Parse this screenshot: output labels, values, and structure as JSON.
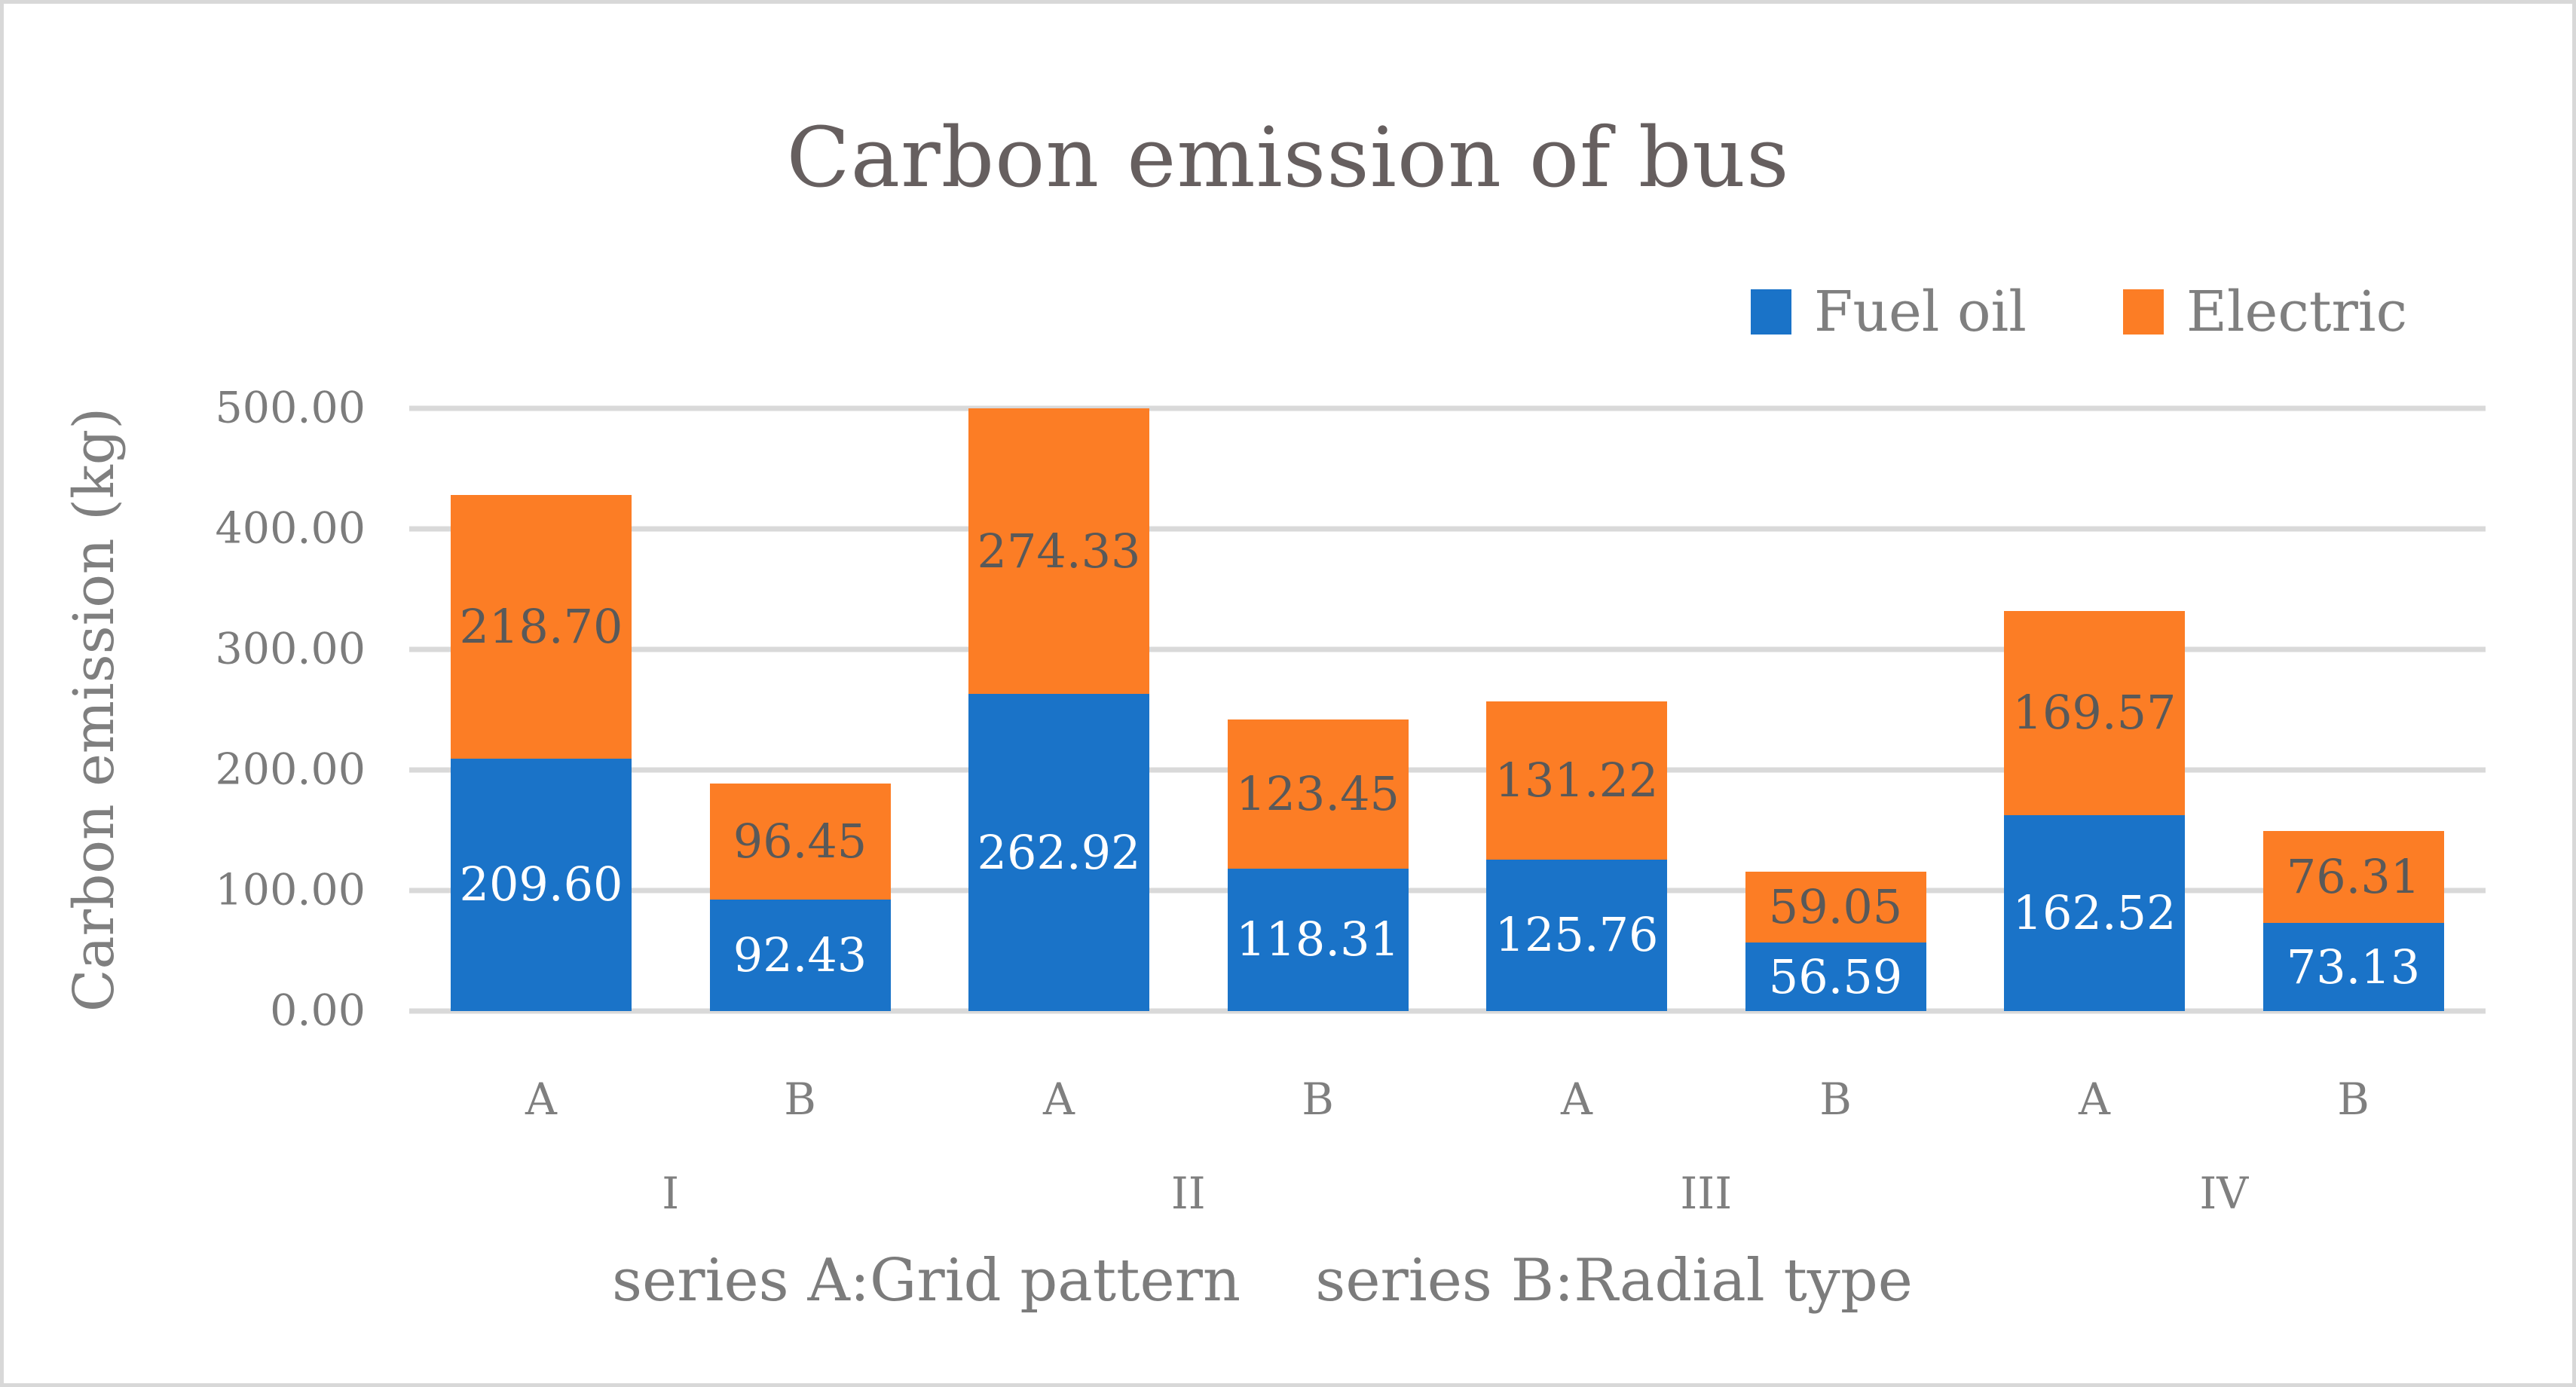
{
  "figure": {
    "background": "#ffffff",
    "border_color": "#d8d8d8"
  },
  "chart_data": {
    "type": "bar",
    "stacked": true,
    "title": "Carbon emission of bus",
    "ylabel": "Carbon emission (kg)",
    "xlabel": "series A:Grid pattern    series B:Radial type",
    "ylim": [
      0,
      500
    ],
    "ytick_values": [
      0,
      100,
      200,
      300,
      400,
      500
    ],
    "ytick_labels": [
      "0.00",
      "100.00",
      "200.00",
      "300.00",
      "400.00",
      "500.00"
    ],
    "grid": true,
    "legend_position": "top-right",
    "categories": [
      "A",
      "B",
      "A",
      "B",
      "A",
      "B",
      "A",
      "B"
    ],
    "group_labels": [
      "I",
      "II",
      "III",
      "IV"
    ],
    "series": [
      {
        "name": "Fuel oil",
        "color": "#1a73c8",
        "label_color": "#ffffff",
        "values": [
          209.6,
          92.43,
          262.92,
          118.31,
          125.76,
          56.59,
          162.52,
          73.13
        ]
      },
      {
        "name": "Electric",
        "color": "#fc7d25",
        "label_color": "#595959",
        "values": [
          218.7,
          96.45,
          274.33,
          123.45,
          131.22,
          59.05,
          169.57,
          76.31
        ]
      }
    ],
    "data_labels_decimals": 2,
    "gridline_color": "#d9d9d9",
    "text_color": "#7f7f7f",
    "title_color": "#665f5f"
  }
}
